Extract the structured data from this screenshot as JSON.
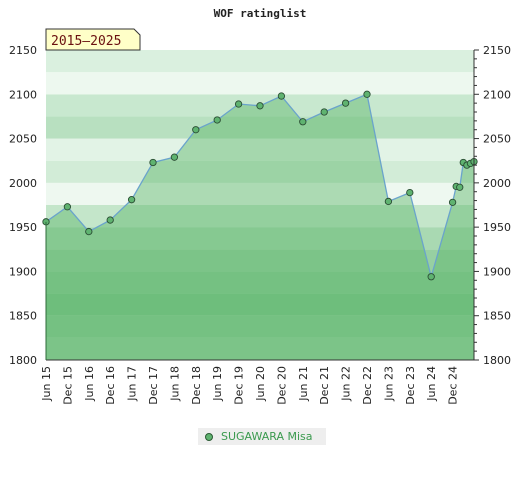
{
  "chart_data": {
    "type": "area",
    "title": "WOF ratinglist",
    "badge": "2015–2025",
    "ylim": [
      1800,
      2150
    ],
    "yticks": [
      1800,
      1850,
      1900,
      1950,
      2000,
      2050,
      2100,
      2150
    ],
    "xlim": [
      2015.458,
      2025.458
    ],
    "xticks": [
      {
        "label": "Jun 15",
        "x": 2015.458
      },
      {
        "label": "Dec 15",
        "x": 2015.958
      },
      {
        "label": "Jun 16",
        "x": 2016.458
      },
      {
        "label": "Dec 16",
        "x": 2016.958
      },
      {
        "label": "Jun 17",
        "x": 2017.458
      },
      {
        "label": "Dec 17",
        "x": 2017.958
      },
      {
        "label": "Jun 18",
        "x": 2018.458
      },
      {
        "label": "Dec 18",
        "x": 2018.958
      },
      {
        "label": "Jun 19",
        "x": 2019.458
      },
      {
        "label": "Dec 19",
        "x": 2019.958
      },
      {
        "label": "Jun 20",
        "x": 2020.458
      },
      {
        "label": "Dec 20",
        "x": 2020.958
      },
      {
        "label": "Jun 21",
        "x": 2021.458
      },
      {
        "label": "Dec 21",
        "x": 2021.958
      },
      {
        "label": "Jun 22",
        "x": 2022.458
      },
      {
        "label": "Dec 22",
        "x": 2022.958
      },
      {
        "label": "Jun 23",
        "x": 2023.458
      },
      {
        "label": "Dec 23",
        "x": 2023.958
      },
      {
        "label": "Jun 24",
        "x": 2024.458
      },
      {
        "label": "Dec 24",
        "x": 2024.958
      }
    ],
    "series": [
      {
        "name": "SUGAWARA Misa",
        "points": [
          [
            2015.458,
            1956
          ],
          [
            2015.958,
            1973
          ],
          [
            2016.458,
            1945
          ],
          [
            2016.958,
            1958
          ],
          [
            2017.458,
            1981
          ],
          [
            2017.958,
            2023
          ],
          [
            2018.458,
            2029
          ],
          [
            2018.958,
            2060
          ],
          [
            2019.458,
            2071
          ],
          [
            2019.958,
            2089
          ],
          [
            2020.458,
            2087
          ],
          [
            2020.958,
            2098
          ],
          [
            2021.458,
            2069
          ],
          [
            2021.958,
            2080
          ],
          [
            2022.458,
            2090
          ],
          [
            2022.958,
            2100
          ],
          [
            2023.458,
            1979
          ],
          [
            2023.958,
            1989
          ],
          [
            2024.458,
            1894
          ],
          [
            2024.958,
            1978
          ],
          [
            2025.042,
            1996
          ],
          [
            2025.125,
            1995
          ],
          [
            2025.208,
            2023
          ],
          [
            2025.292,
            2020
          ],
          [
            2025.375,
            2022
          ],
          [
            2025.458,
            2024
          ]
        ]
      }
    ],
    "legend_position": "bottom",
    "colors": {
      "area": "#5ab569",
      "line": "#6aa3cc",
      "marker": "#5fb370",
      "marker_edge": "#2a4d33",
      "badge_bg": "#ffffc8"
    }
  }
}
